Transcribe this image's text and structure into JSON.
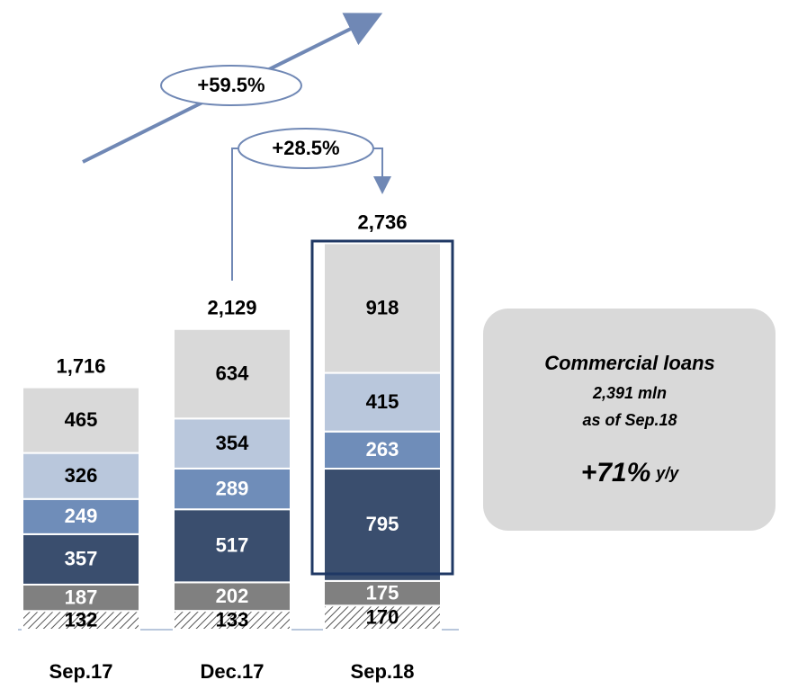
{
  "chart_data": {
    "type": "bar",
    "stacked": true,
    "categories": [
      "Sep.17",
      "Dec.17",
      "Sep.18"
    ],
    "series": [
      {
        "color": "#ffffff",
        "label_color": "#000000",
        "hatch": true,
        "values": [
          132,
          133,
          170
        ]
      },
      {
        "color": "#808080",
        "label_color": "#ffffff",
        "values": [
          187,
          202,
          175
        ]
      },
      {
        "color": "#3a4e6e",
        "label_color": "#ffffff",
        "values": [
          357,
          517,
          795
        ]
      },
      {
        "color": "#6f8db9",
        "label_color": "#ffffff",
        "values": [
          249,
          289,
          263
        ]
      },
      {
        "color": "#b9c7dc",
        "label_color": "#000000",
        "values": [
          326,
          354,
          415
        ]
      },
      {
        "color": "#d9d9d9",
        "label_color": "#000000",
        "values": [
          465,
          634,
          918
        ]
      }
    ],
    "totals": [
      1716,
      2129,
      2736
    ],
    "total_labels": [
      "1,716",
      "2,129",
      "2,736"
    ],
    "ylim": [
      0,
      3000
    ],
    "annotations": [
      "+59.5%",
      "+28.5%"
    ],
    "callout": {
      "title": "Commercial loans",
      "amount": "2,391 mln",
      "date": "as of Sep.18",
      "growth": "+71%",
      "growth_unit": "y/y"
    }
  }
}
